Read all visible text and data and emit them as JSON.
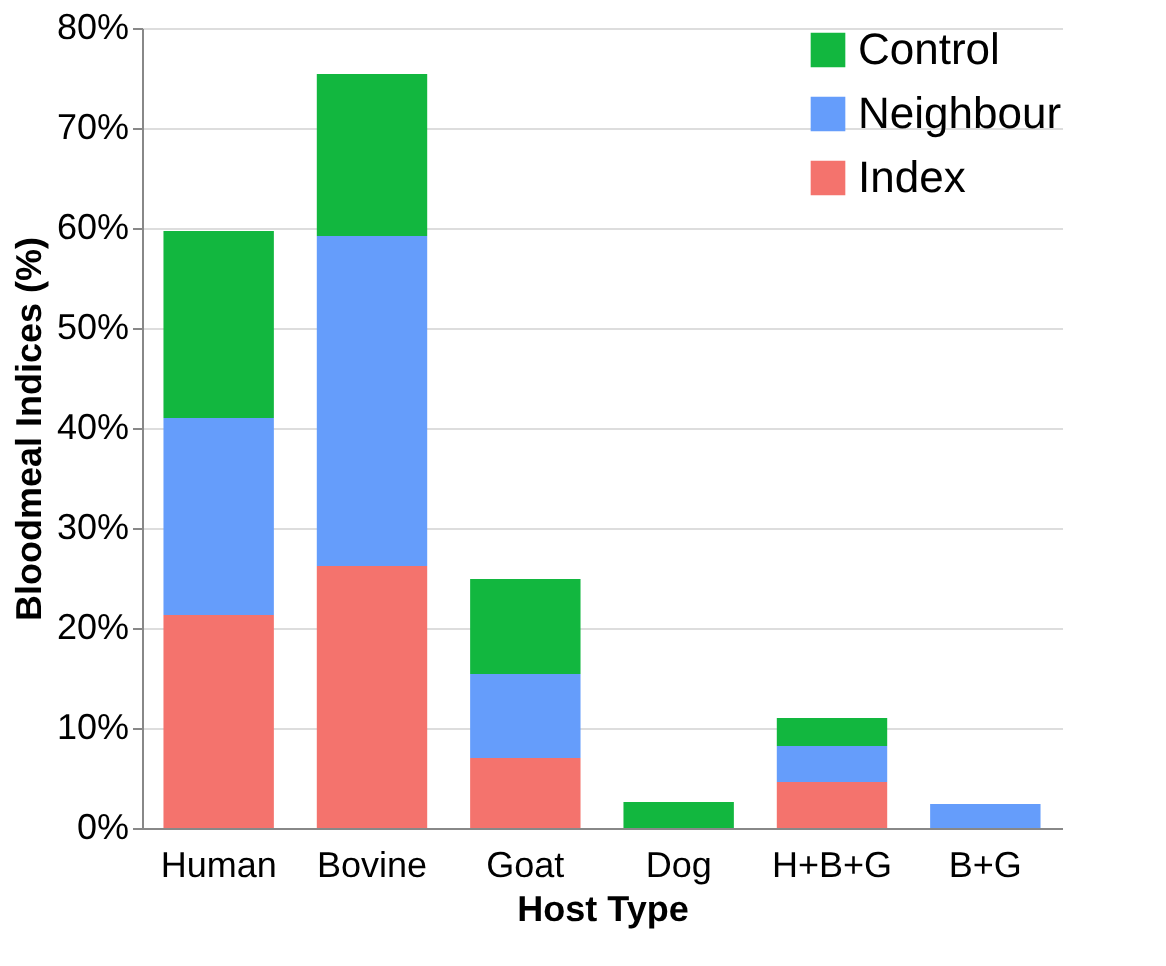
{
  "chart_data": {
    "type": "bar",
    "stacked": true,
    "xlabel": "Host Type",
    "ylabel": "Bloodmeal Indices (%)",
    "categories": [
      "Human",
      "Bovine",
      "Goat",
      "Dog",
      "H+B+G",
      "B+G"
    ],
    "series": [
      {
        "name": "Index",
        "color": "#f4736d",
        "values": [
          21.3,
          26.2,
          7.0,
          null,
          4.6,
          null
        ]
      },
      {
        "name": "Neighbour",
        "color": "#659dfb",
        "values": [
          19.7,
          33.0,
          8.4,
          null,
          3.6,
          2.4
        ]
      },
      {
        "name": "Control",
        "color": "#12b73f",
        "values": [
          18.7,
          16.2,
          9.5,
          2.6,
          2.8,
          null
        ]
      }
    ],
    "ylim": [
      0,
      80
    ],
    "yticks": [
      {
        "value": 0,
        "label": "0%"
      },
      {
        "value": 10,
        "label": "10%"
      },
      {
        "value": 20,
        "label": "20%"
      },
      {
        "value": 30,
        "label": "30%"
      },
      {
        "value": 40,
        "label": "40%"
      },
      {
        "value": 50,
        "label": "50%"
      },
      {
        "value": 60,
        "label": "60%"
      },
      {
        "value": 70,
        "label": "70%"
      },
      {
        "value": 80,
        "label": "80%"
      }
    ],
    "grid": "y",
    "legend": "top right"
  }
}
